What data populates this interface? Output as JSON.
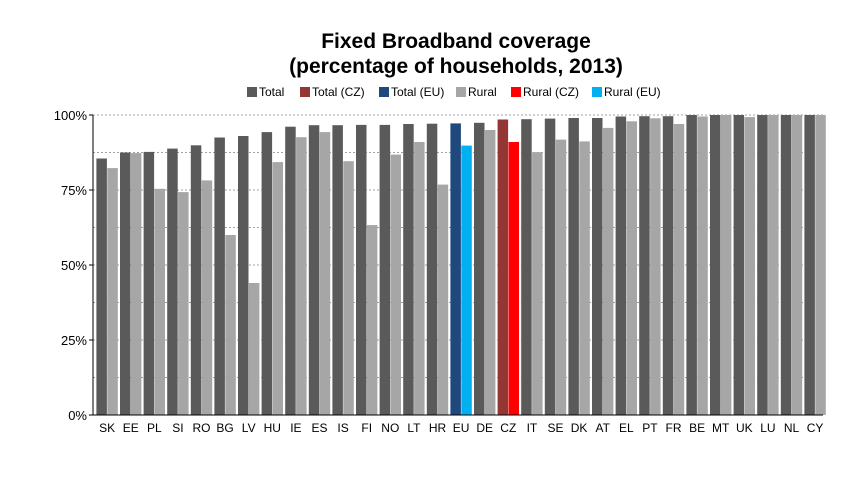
{
  "chart_data": {
    "type": "bar",
    "title": "Fixed Broadband coverage",
    "subtitle": "(percentage of households, 2013)",
    "xlabel": "",
    "ylabel": "",
    "ylim": [
      0,
      100
    ],
    "yticks": [
      0,
      25,
      50,
      75,
      100
    ],
    "ytick_labels": [
      "0%",
      "25%",
      "50%",
      "75%",
      "100%"
    ],
    "grid": "horizontal dotted",
    "legend_position": "top",
    "legend": [
      {
        "label": "Total",
        "color": "#5a5a5a"
      },
      {
        "label": "Total (CZ)",
        "color": "#943634"
      },
      {
        "label": "Total (EU)",
        "color": "#1f497d"
      },
      {
        "label": "Rural",
        "color": "#a6a6a6"
      },
      {
        "label": "Rural (CZ)",
        "color": "#ff0000"
      },
      {
        "label": "Rural (EU)",
        "color": "#00b0f0"
      }
    ],
    "categories": [
      "SK",
      "EE",
      "PL",
      "SI",
      "RO",
      "BG",
      "LV",
      "HU",
      "IE",
      "ES",
      "IS",
      "FI",
      "NO",
      "LT",
      "HR",
      "EU",
      "DE",
      "CZ",
      "IT",
      "SE",
      "DK",
      "AT",
      "EL",
      "PT",
      "FR",
      "BE",
      "MT",
      "UK",
      "LU",
      "NL",
      "CY"
    ],
    "series": [
      {
        "name": "Total",
        "values": [
          85.5,
          87.5,
          87.7,
          88.8,
          89.9,
          92.5,
          93.0,
          94.3,
          96.1,
          96.6,
          96.6,
          96.7,
          96.7,
          97.0,
          97.1,
          97.2,
          97.4,
          98.5,
          98.6,
          98.8,
          99.0,
          99.0,
          99.5,
          99.6,
          99.6,
          100,
          100,
          100,
          100,
          100,
          100
        ]
      },
      {
        "name": "Rural",
        "values": [
          82.3,
          87.3,
          75.4,
          74.3,
          78.2,
          60.0,
          44.0,
          84.3,
          92.6,
          94.3,
          84.6,
          63.3,
          86.8,
          91.0,
          76.8,
          89.8,
          95.0,
          91.0,
          87.6,
          91.8,
          91.2,
          95.7,
          97.9,
          98.9,
          97.0,
          99.5,
          100,
          99.3,
          100,
          100,
          100
        ]
      }
    ]
  }
}
